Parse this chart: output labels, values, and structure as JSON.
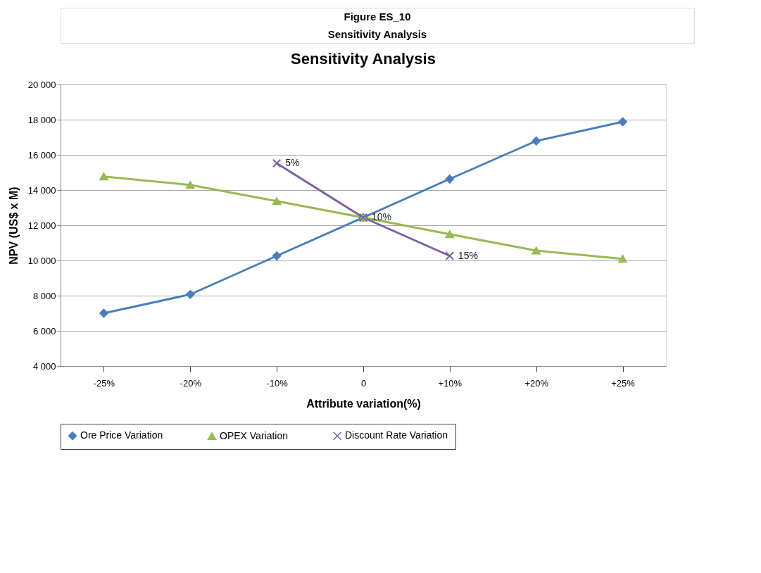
{
  "chart_data": {
    "type": "line",
    "title": "Sensitivity Analysis",
    "annotations": [
      "Figure ES_10",
      "Sensitivity Analysis",
      {
        "text": "5%",
        "x": "-10%",
        "y": 15520
      },
      {
        "text": "10%",
        "x": "0",
        "y": 12440
      },
      {
        "text": "15%",
        "x": "+10%",
        "y": 10260
      }
    ],
    "xlabel": "Attribute variation(%)",
    "ylabel": "NPV (US$ x M)",
    "categories": [
      "-25%",
      "-20%",
      "-10%",
      "0",
      "+10%",
      "+20%",
      "+25%"
    ],
    "series": [
      {
        "name": "Ore Price Variation",
        "color": "#4a7ebb",
        "marker": "diamond",
        "values": [
          7000,
          8070,
          10260,
          12440,
          14630,
          16790,
          17880
        ]
      },
      {
        "name": "OPEX Variation",
        "color": "#98b954",
        "marker": "triangle",
        "values": [
          14770,
          14290,
          13370,
          12440,
          11490,
          10560,
          10090
        ]
      },
      {
        "name": "Discount Rate Variation",
        "color": "#7d60a0",
        "marker": "cross",
        "values": [
          null,
          null,
          15520,
          12440,
          10260,
          null,
          null
        ]
      }
    ],
    "ylim": [
      4000,
      20000
    ],
    "yticks": [
      {
        "value": 4000,
        "label": "4 000"
      },
      {
        "value": 6000,
        "label": "6 000"
      },
      {
        "value": 8000,
        "label": "8 000"
      },
      {
        "value": 10000,
        "label": "10 000"
      },
      {
        "value": 12000,
        "label": "12 000"
      },
      {
        "value": 14000,
        "label": "14 000"
      },
      {
        "value": 16000,
        "label": "16 000"
      },
      {
        "value": 18000,
        "label": "18 000"
      },
      {
        "value": 20000,
        "label": "20 000"
      }
    ],
    "grid": "y",
    "legend": "bottom",
    "line_style": "solid"
  }
}
